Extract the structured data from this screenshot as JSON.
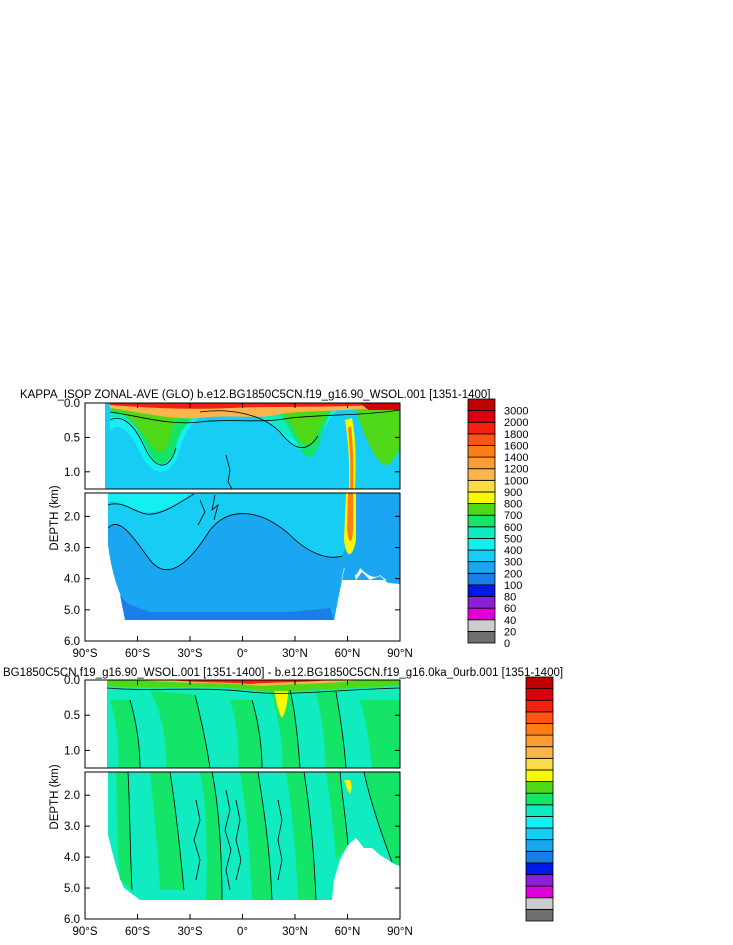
{
  "figure": {
    "panel1_title": "KAPPA_ISOP ZONAL-AVE (GLO) b.e12.BG1850C5CN.f19_g16.90_WSOL.001 [1351-1400]",
    "panel2_title": "BG1850C5CN.f19_g16.90_WSOL.001 [1351-1400] - b.e12.BG1850C5CN.f19_g16.0ka_0urb.001 [1351-1400]"
  },
  "chart_data": [
    {
      "type": "heatmap",
      "title": "KAPPA_ISOP ZONAL-AVE (GLO) b.e12.BG1850C5CN.f19_g16.90_WSOL.001 [1351-1400]",
      "ylabel": "DEPTH (km)",
      "xlim": [
        -90,
        90
      ],
      "ylim": [
        6.0,
        0.0
      ],
      "y_break_km": 1.25,
      "xticks": [
        "90°S",
        "60°S",
        "30°S",
        "0°",
        "30°N",
        "60°N",
        "90°N"
      ],
      "yticks_upper": [
        "0.0",
        "0.5",
        "1.0"
      ],
      "yticks_lower": [
        "2.0",
        "3.0",
        "4.0",
        "5.0",
        "6.0"
      ],
      "levels": [
        0,
        20,
        40,
        60,
        80,
        100,
        200,
        300,
        400,
        500,
        600,
        700,
        800,
        900,
        1000,
        1200,
        1400,
        1600,
        1800,
        2000,
        3000
      ],
      "level_labels": [
        "0",
        "20",
        "40",
        "60",
        "80",
        "100",
        "200",
        "300",
        "400",
        "500",
        "600",
        "700",
        "800",
        "900",
        "1000",
        "1200",
        "1400",
        "1600",
        "1800",
        "2000",
        "3000"
      ],
      "level_colors": [
        "#6e6e6e",
        "#cdcdcd",
        "#e000d8",
        "#8a1fd6",
        "#0018e8",
        "#1a7ee8",
        "#1aa6f0",
        "#18cdf4",
        "#14f0f0",
        "#10ecc0",
        "#14e468",
        "#4ed818",
        "#f8f808",
        "#fcdc4a",
        "#fcb44c",
        "#fc9c34",
        "#fc7e14",
        "#fc5414",
        "#f42010",
        "#d80010",
        "#c00000"
      ]
    },
    {
      "type": "heatmap",
      "title": "BG1850C5CN.f19_g16.90_WSOL.001 [1351-1400] - b.e12.BG1850C5CN.f19_g16.0ka_0urb.001 [1351-1400]",
      "ylabel": "DEPTH (km)",
      "xlim": [
        -90,
        90
      ],
      "ylim": [
        6.0,
        0.0
      ],
      "y_break_km": 1.25,
      "xticks": [
        "90°S",
        "60°S",
        "30°S",
        "0°",
        "30°N",
        "60°N",
        "90°N"
      ],
      "yticks_upper": [
        "0.0",
        "0.5",
        "1.0"
      ],
      "yticks_lower": [
        "2.0",
        "3.0",
        "4.0",
        "5.0",
        "6.0"
      ],
      "level_colors": [
        "#6e6e6e",
        "#cdcdcd",
        "#e000d8",
        "#8a1fd6",
        "#0018e8",
        "#1a7ee8",
        "#1aa6f0",
        "#18cdf4",
        "#14f0f0",
        "#10ecc0",
        "#14e468",
        "#4ed818",
        "#f8f808",
        "#fcdc4a",
        "#fcb44c",
        "#fc9c34",
        "#fc7e14",
        "#fc5414",
        "#f42010",
        "#d80010",
        "#c00000"
      ],
      "level_labels_shown": false
    }
  ]
}
